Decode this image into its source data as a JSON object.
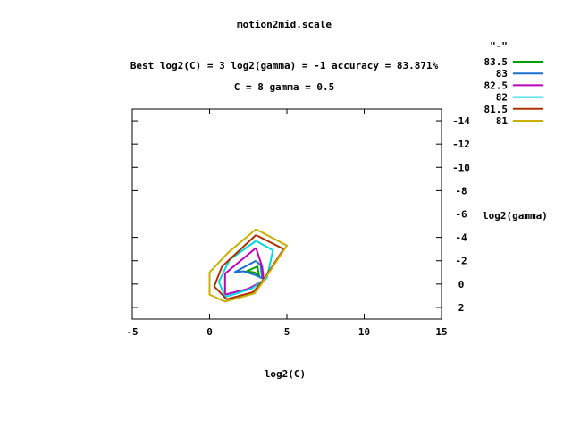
{
  "chart_data": {
    "type": "line",
    "title": "motion2mid.scale",
    "subtitle_1": "Best log2(C) = 3  log2(gamma) = -1  accuracy = 83.871%",
    "subtitle_2": "C = 8  gamma = 0.5",
    "xlabel": "log2(C)",
    "ylabel": "log2(gamma)",
    "xlim": [
      -5,
      15
    ],
    "ylim": [
      -15,
      3
    ],
    "y_reversed": true,
    "x_ticks": [
      -5,
      0,
      5,
      10,
      15
    ],
    "x_tick_labels": [
      "-5",
      "0",
      "5",
      "10",
      "15"
    ],
    "y_ticks": [
      -14,
      -12,
      -10,
      -8,
      -6,
      -4,
      -2,
      0,
      2
    ],
    "y_tick_labels": [
      "-14",
      "-12",
      "-10",
      "-8",
      "-6",
      "-4",
      "-2",
      "0",
      "2"
    ],
    "y_axis_side": "right",
    "grid": false,
    "legend_position": "top-right outside",
    "legend_title": "\"-\"",
    "series": [
      {
        "name": "83.5",
        "color": "#00a000",
        "points": [
          [
            2.9,
            -1.4
          ],
          [
            3.1,
            -1.5
          ],
          [
            3.2,
            -0.7
          ],
          [
            2.9,
            -1.0
          ],
          [
            2.4,
            -1.1
          ],
          [
            2.9,
            -1.4
          ]
        ]
      },
      {
        "name": "83",
        "color": "#1a70d0",
        "points": [
          [
            3.0,
            -2.0
          ],
          [
            3.3,
            -1.6
          ],
          [
            3.4,
            -0.5
          ],
          [
            2.9,
            -0.8
          ],
          [
            2.2,
            -1.1
          ],
          [
            1.6,
            -1.0
          ],
          [
            3.0,
            -2.0
          ]
        ]
      },
      {
        "name": "82.5",
        "color": "#c000c0",
        "points": [
          [
            3.0,
            -3.1
          ],
          [
            3.4,
            -1.5
          ],
          [
            3.5,
            -0.3
          ],
          [
            2.5,
            0.4
          ],
          [
            1.0,
            0.9
          ],
          [
            1.0,
            -0.9
          ],
          [
            3.0,
            -3.1
          ]
        ]
      },
      {
        "name": "82",
        "color": "#00d8e0",
        "points": [
          [
            3.0,
            -3.7
          ],
          [
            4.1,
            -2.9
          ],
          [
            3.7,
            -0.5
          ],
          [
            2.7,
            0.4
          ],
          [
            1.0,
            1.1
          ],
          [
            0.6,
            -0.2
          ],
          [
            1.3,
            -2.1
          ],
          [
            3.0,
            -3.7
          ]
        ]
      },
      {
        "name": "81.5",
        "color": "#b03000",
        "points": [
          [
            3.0,
            -4.2
          ],
          [
            4.8,
            -3.0
          ],
          [
            3.4,
            -0.2
          ],
          [
            2.8,
            0.7
          ],
          [
            1.1,
            1.3
          ],
          [
            0.3,
            0.2
          ],
          [
            0.8,
            -1.5
          ],
          [
            3.0,
            -4.2
          ]
        ]
      },
      {
        "name": "81",
        "color": "#c8b000",
        "points": [
          [
            3.0,
            -4.7
          ],
          [
            5.0,
            -3.3
          ],
          [
            3.3,
            0.1
          ],
          [
            2.9,
            0.8
          ],
          [
            1.0,
            1.5
          ],
          [
            0.0,
            0.9
          ],
          [
            0.0,
            -1.0
          ],
          [
            1.2,
            -2.7
          ],
          [
            3.0,
            -4.7
          ]
        ]
      }
    ]
  }
}
